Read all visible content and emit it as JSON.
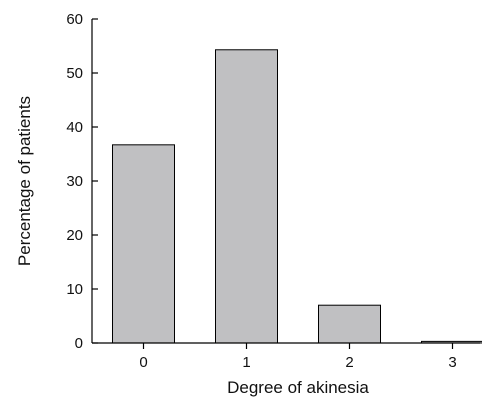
{
  "chart_data": {
    "type": "bar",
    "categories": [
      "0",
      "1",
      "2",
      "3"
    ],
    "values": [
      36.7,
      54.3,
      7.0,
      0.3
    ],
    "title": "",
    "xlabel": "Degree of akinesia",
    "ylabel": "Percentage of patients",
    "ylim": [
      0,
      60
    ],
    "yticks": [
      "0",
      "10",
      "20",
      "30",
      "40",
      "50",
      "60"
    ],
    "grid": false,
    "legend": "none",
    "bar_color": "#c0c0c2"
  }
}
